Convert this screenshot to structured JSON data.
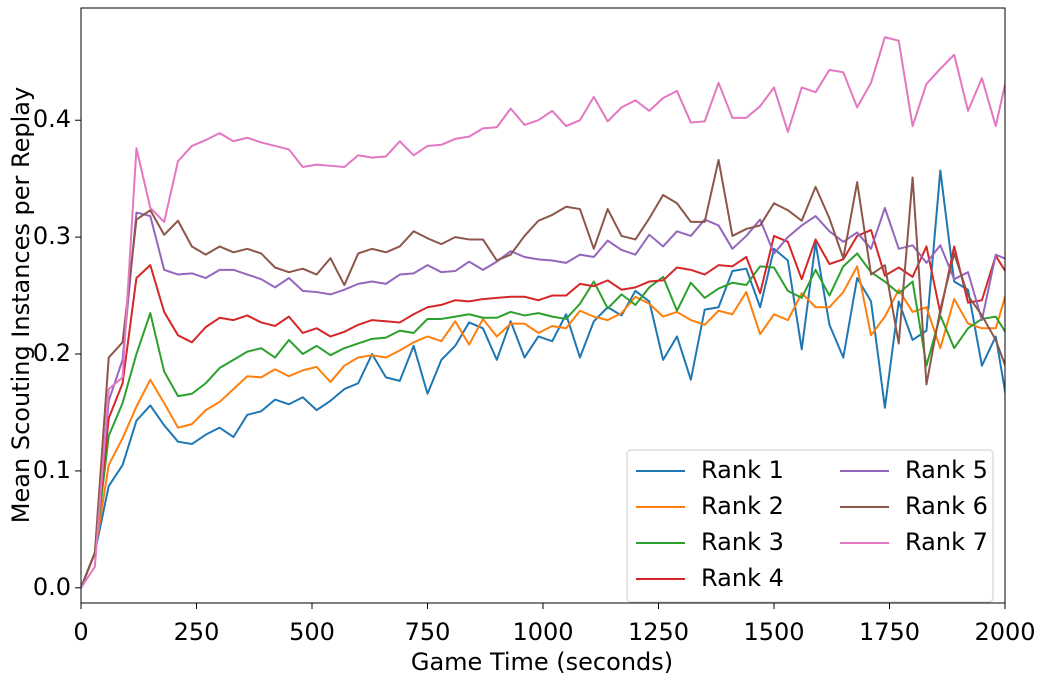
{
  "chart_data": {
    "type": "line",
    "x_label": "Game Time (seconds)",
    "y_label": "Mean Scouting Instances per Replay",
    "x": [
      0,
      30,
      60,
      90,
      120,
      150,
      180,
      210,
      240,
      270,
      300,
      330,
      360,
      390,
      420,
      450,
      480,
      510,
      540,
      570,
      600,
      630,
      660,
      690,
      720,
      750,
      780,
      810,
      840,
      870,
      900,
      930,
      960,
      990,
      1020,
      1050,
      1080,
      1110,
      1140,
      1170,
      1200,
      1230,
      1260,
      1290,
      1320,
      1350,
      1380,
      1410,
      1440,
      1470,
      1500,
      1530,
      1560,
      1590,
      1620,
      1650,
      1680,
      1710,
      1740,
      1770,
      1800,
      1830,
      1860,
      1890,
      1920,
      1950,
      1980,
      2010
    ],
    "xlim": [
      0,
      2000
    ],
    "xticks": [
      0,
      250,
      500,
      750,
      1000,
      1250,
      1500,
      1750,
      2000
    ],
    "ylim": [
      -0.013,
      0.496
    ],
    "yticks": [
      {
        "value": 0,
        "label": "0.0"
      },
      0.1,
      0.2,
      0.3,
      0.4
    ],
    "legend": "lower right",
    "grid": false,
    "series": [
      {
        "name": "Rank 1",
        "color": "#1f77b4",
        "values": [
          0,
          0.03,
          0.087,
          0.105,
          0.143,
          0.156,
          0.139,
          0.125,
          0.123,
          0.131,
          0.137,
          0.129,
          0.148,
          0.151,
          0.161,
          0.157,
          0.163,
          0.152,
          0.16,
          0.17,
          0.175,
          0.2,
          0.18,
          0.177,
          0.207,
          0.166,
          0.195,
          0.207,
          0.227,
          0.222,
          0.195,
          0.228,
          0.197,
          0.215,
          0.211,
          0.234,
          0.197,
          0.228,
          0.24,
          0.233,
          0.254,
          0.245,
          0.195,
          0.215,
          0.178,
          0.238,
          0.24,
          0.271,
          0.273,
          0.24,
          0.29,
          0.28,
          0.204,
          0.295,
          0.225,
          0.197,
          0.265,
          0.245,
          0.154,
          0.245,
          0.212,
          0.22,
          0.357,
          0.262,
          0.255,
          0.19,
          0.215,
          0.145
        ]
      },
      {
        "name": "Rank 2",
        "color": "#ff7f0e",
        "values": [
          0,
          0.03,
          0.105,
          0.128,
          0.155,
          0.178,
          0.158,
          0.137,
          0.14,
          0.152,
          0.159,
          0.17,
          0.181,
          0.18,
          0.187,
          0.181,
          0.186,
          0.189,
          0.176,
          0.19,
          0.197,
          0.199,
          0.197,
          0.203,
          0.21,
          0.215,
          0.211,
          0.228,
          0.208,
          0.23,
          0.215,
          0.226,
          0.226,
          0.218,
          0.224,
          0.222,
          0.237,
          0.232,
          0.229,
          0.235,
          0.249,
          0.243,
          0.232,
          0.236,
          0.229,
          0.225,
          0.237,
          0.234,
          0.253,
          0.217,
          0.234,
          0.229,
          0.252,
          0.24,
          0.24,
          0.253,
          0.275,
          0.216,
          0.232,
          0.255,
          0.236,
          0.24,
          0.205,
          0.247,
          0.226,
          0.222,
          0.222,
          0.262
        ]
      },
      {
        "name": "Rank 3",
        "color": "#2ca02c",
        "values": [
          0,
          0.03,
          0.13,
          0.158,
          0.2,
          0.235,
          0.185,
          0.164,
          0.166,
          0.175,
          0.188,
          0.195,
          0.202,
          0.205,
          0.197,
          0.212,
          0.2,
          0.207,
          0.199,
          0.205,
          0.209,
          0.213,
          0.214,
          0.22,
          0.218,
          0.23,
          0.23,
          0.232,
          0.234,
          0.231,
          0.231,
          0.236,
          0.233,
          0.235,
          0.232,
          0.23,
          0.243,
          0.262,
          0.239,
          0.251,
          0.242,
          0.257,
          0.266,
          0.237,
          0.261,
          0.248,
          0.256,
          0.261,
          0.259,
          0.275,
          0.274,
          0.254,
          0.248,
          0.272,
          0.25,
          0.275,
          0.286,
          0.27,
          0.262,
          0.252,
          0.262,
          0.19,
          0.233,
          0.205,
          0.222,
          0.23,
          0.232,
          0.213
        ]
      },
      {
        "name": "Rank 4",
        "color": "#d62728",
        "values": [
          0,
          0.03,
          0.145,
          0.175,
          0.265,
          0.276,
          0.236,
          0.216,
          0.21,
          0.223,
          0.231,
          0.229,
          0.233,
          0.227,
          0.224,
          0.232,
          0.218,
          0.222,
          0.215,
          0.219,
          0.225,
          0.229,
          0.228,
          0.227,
          0.234,
          0.24,
          0.242,
          0.246,
          0.245,
          0.247,
          0.248,
          0.249,
          0.249,
          0.246,
          0.25,
          0.25,
          0.26,
          0.258,
          0.263,
          0.255,
          0.257,
          0.262,
          0.263,
          0.274,
          0.272,
          0.268,
          0.276,
          0.275,
          0.283,
          0.252,
          0.301,
          0.296,
          0.264,
          0.298,
          0.277,
          0.281,
          0.301,
          0.306,
          0.267,
          0.274,
          0.266,
          0.292,
          0.235,
          0.292,
          0.244,
          0.246,
          0.284,
          0.265
        ]
      },
      {
        "name": "Rank 5",
        "color": "#9467bd",
        "values": [
          0,
          0.03,
          0.16,
          0.195,
          0.321,
          0.318,
          0.272,
          0.268,
          0.269,
          0.265,
          0.272,
          0.272,
          0.268,
          0.264,
          0.257,
          0.265,
          0.254,
          0.253,
          0.251,
          0.255,
          0.26,
          0.262,
          0.26,
          0.268,
          0.269,
          0.276,
          0.27,
          0.271,
          0.279,
          0.272,
          0.279,
          0.288,
          0.283,
          0.281,
          0.28,
          0.278,
          0.285,
          0.283,
          0.297,
          0.289,
          0.285,
          0.302,
          0.292,
          0.305,
          0.301,
          0.315,
          0.31,
          0.29,
          0.301,
          0.315,
          0.286,
          0.3,
          0.31,
          0.318,
          0.305,
          0.296,
          0.304,
          0.29,
          0.325,
          0.29,
          0.293,
          0.278,
          0.293,
          0.264,
          0.27,
          0.229,
          0.285,
          0.28
        ]
      },
      {
        "name": "Rank 6",
        "color": "#8c564b",
        "values": [
          0,
          0.03,
          0.197,
          0.21,
          0.315,
          0.323,
          0.302,
          0.314,
          0.292,
          0.285,
          0.292,
          0.287,
          0.29,
          0.286,
          0.274,
          0.27,
          0.273,
          0.268,
          0.282,
          0.259,
          0.286,
          0.29,
          0.287,
          0.292,
          0.305,
          0.299,
          0.294,
          0.3,
          0.298,
          0.298,
          0.28,
          0.285,
          0.301,
          0.314,
          0.319,
          0.326,
          0.324,
          0.29,
          0.324,
          0.301,
          0.298,
          0.316,
          0.336,
          0.329,
          0.313,
          0.313,
          0.366,
          0.301,
          0.307,
          0.31,
          0.329,
          0.323,
          0.314,
          0.343,
          0.316,
          0.282,
          0.347,
          0.268,
          0.276,
          0.209,
          0.351,
          0.174,
          0.238,
          0.286,
          0.25,
          0.233,
          0.212,
          0.18
        ]
      },
      {
        "name": "Rank 7",
        "color": "#e377c2",
        "values": [
          0,
          0.018,
          0.17,
          0.18,
          0.376,
          0.325,
          0.313,
          0.365,
          0.378,
          0.383,
          0.389,
          0.382,
          0.385,
          0.381,
          0.378,
          0.375,
          0.36,
          0.362,
          0.361,
          0.36,
          0.37,
          0.368,
          0.369,
          0.382,
          0.37,
          0.378,
          0.379,
          0.384,
          0.386,
          0.393,
          0.394,
          0.41,
          0.396,
          0.4,
          0.408,
          0.395,
          0.4,
          0.42,
          0.399,
          0.411,
          0.417,
          0.408,
          0.419,
          0.425,
          0.398,
          0.399,
          0.432,
          0.402,
          0.402,
          0.412,
          0.428,
          0.39,
          0.428,
          0.424,
          0.443,
          0.441,
          0.411,
          0.432,
          0.471,
          0.468,
          0.395,
          0.431,
          0.444,
          0.456,
          0.408,
          0.436,
          0.395,
          0.448
        ]
      }
    ]
  }
}
